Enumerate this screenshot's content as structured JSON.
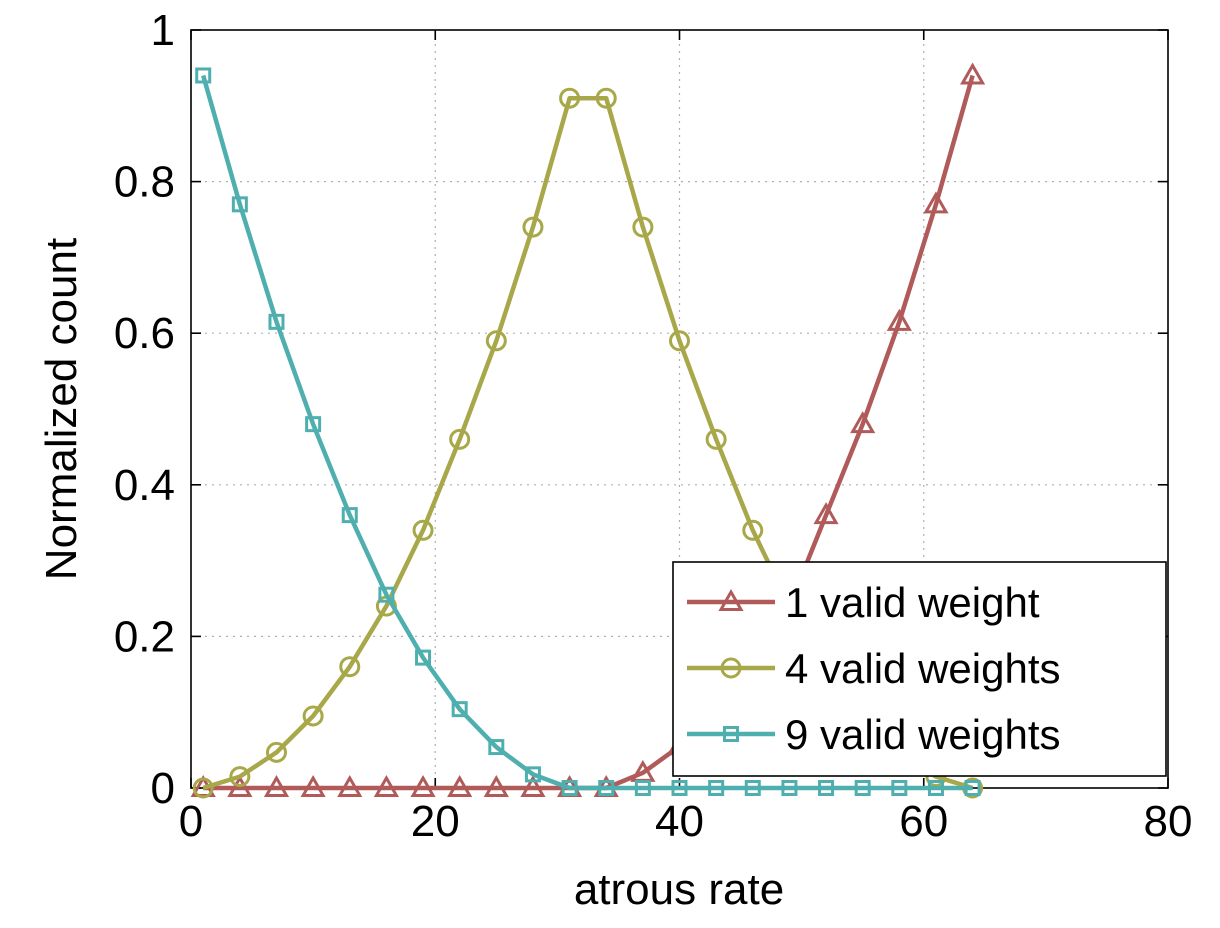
{
  "chart_data": {
    "type": "line",
    "title": "",
    "xlabel": "atrous rate",
    "ylabel": "Normalized count",
    "xlim": [
      0,
      80
    ],
    "ylim": [
      0,
      1
    ],
    "xticks": [
      0,
      20,
      40,
      60,
      80
    ],
    "yticks": [
      0,
      0.2,
      0.4,
      0.6,
      0.8,
      1
    ],
    "xtick_labels": [
      "0",
      "20",
      "40",
      "60",
      "80"
    ],
    "ytick_labels": [
      "0",
      "0.2",
      "0.4",
      "0.6",
      "0.8",
      "1"
    ],
    "grid": true,
    "legend_position": "bottom-right",
    "x": [
      1,
      4,
      7,
      10,
      13,
      16,
      19,
      22,
      25,
      28,
      31,
      34,
      37,
      40,
      43,
      46,
      49,
      52,
      55,
      58,
      61,
      64
    ],
    "series": [
      {
        "name": "1 valid weight",
        "marker": "triangle",
        "color": "#B05A5A",
        "values": [
          0,
          0,
          0,
          0,
          0,
          0,
          0,
          0,
          0,
          0,
          0,
          0,
          0.02,
          0.055,
          0.1,
          0.16,
          0.24,
          0.36,
          0.48,
          0.615,
          0.77,
          0.94
        ]
      },
      {
        "name": "4 valid weights",
        "marker": "circle",
        "color": "#A8A84A",
        "values": [
          0,
          0.015,
          0.047,
          0.095,
          0.16,
          0.24,
          0.34,
          0.46,
          0.59,
          0.74,
          0.91,
          0.91,
          0.74,
          0.59,
          0.46,
          0.34,
          0.24,
          0.16,
          0.095,
          0.047,
          0.015,
          0
        ]
      },
      {
        "name": "9 valid weights",
        "marker": "square",
        "color": "#4FAFAF",
        "values": [
          0.94,
          0.77,
          0.615,
          0.48,
          0.36,
          0.255,
          0.172,
          0.104,
          0.054,
          0.018,
          0,
          0,
          0,
          0,
          0,
          0,
          0,
          0,
          0,
          0,
          0,
          0
        ]
      }
    ]
  }
}
